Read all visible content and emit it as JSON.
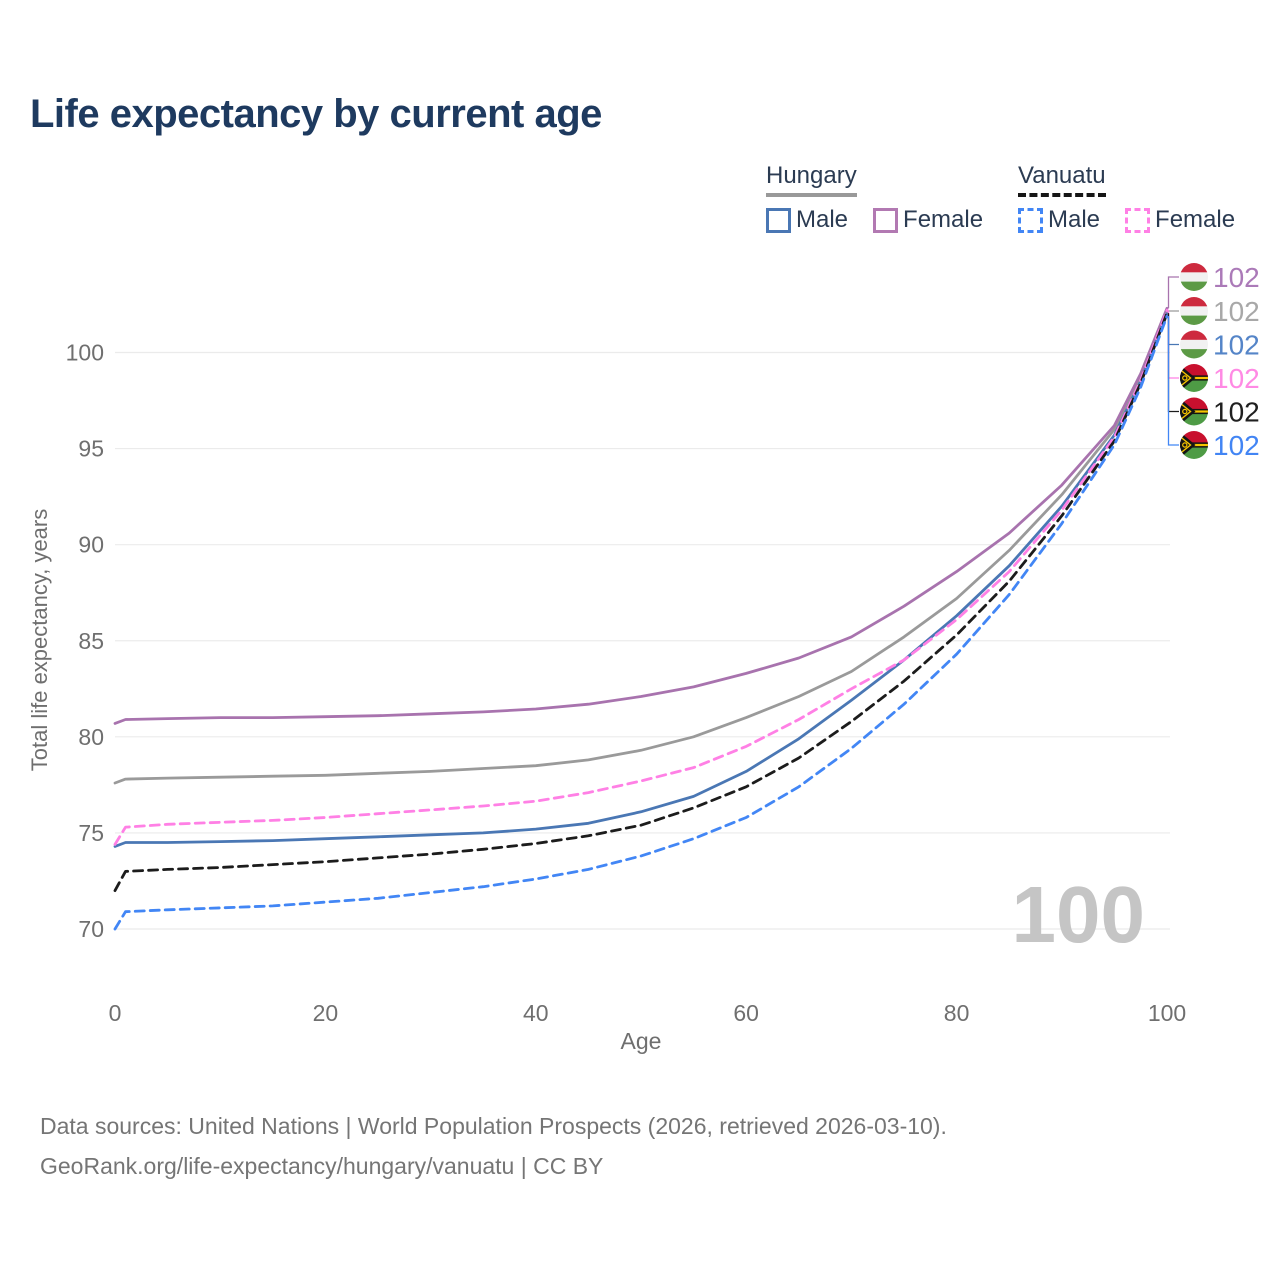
{
  "title": "Life expectancy by current age",
  "legend": {
    "groups": [
      {
        "name": "Hungary",
        "underline_style": "solid",
        "underline_color": "#999999",
        "items": [
          {
            "label": "Male",
            "color": "#4a77b4",
            "dashed": false
          },
          {
            "label": "Female",
            "color": "#b279b2",
            "dashed": false
          }
        ]
      },
      {
        "name": "Vanuatu",
        "underline_style": "dashed",
        "underline_color": "#161616",
        "items": [
          {
            "label": "Male",
            "color": "#4286f5",
            "dashed": true
          },
          {
            "label": "Female",
            "color": "#ff80e5",
            "dashed": true
          }
        ]
      }
    ]
  },
  "watermark": "100",
  "footer": {
    "line1": "Data sources: United Nations | World Population Prospects (2026, retrieved 2026-03-10).",
    "line2": "GeoRank.org/life-expectancy/hungary/vanuatu | CC BY"
  },
  "flags": {
    "hu": {
      "red": "#cd2a3e",
      "white": "#f1f1f1",
      "green": "#5c9a45"
    },
    "vu": {
      "red": "#c8102e",
      "green": "#4e9b45",
      "black": "#141414",
      "yellow": "#f5c400"
    }
  },
  "chart_data": {
    "type": "line",
    "title": "Life expectancy by current age",
    "xlabel": "Age",
    "ylabel": "Total life expectancy, years",
    "x_ticks": [
      0,
      20,
      40,
      60,
      80,
      100
    ],
    "y_ticks": [
      70,
      75,
      80,
      85,
      90,
      95,
      100
    ],
    "xlim": [
      0,
      100
    ],
    "ylim": [
      68.5,
      103
    ],
    "grid": "horizontal",
    "legend_position": "top-right",
    "x": [
      0,
      1,
      5,
      10,
      15,
      20,
      25,
      30,
      35,
      40,
      45,
      50,
      55,
      60,
      65,
      70,
      75,
      80,
      85,
      90,
      95,
      97.5,
      100
    ],
    "series": [
      {
        "id": "hungary-total",
        "name": "Hungary (both sexes)",
        "color": "#9a9a9a",
        "dashed": false,
        "flag": "hu",
        "end_label": "102",
        "end_label_color": "#a8a8a8",
        "values": [
          77.6,
          77.8,
          77.85,
          77.9,
          77.95,
          78.0,
          78.1,
          78.2,
          78.35,
          78.5,
          78.8,
          79.3,
          80.0,
          81.0,
          82.1,
          83.4,
          85.2,
          87.2,
          89.7,
          92.6,
          96.0,
          98.75,
          102.15
        ]
      },
      {
        "id": "hungary-female",
        "name": "Hungary Female",
        "color": "#a873ae",
        "dashed": false,
        "flag": "hu",
        "end_label": "102",
        "end_label_color": "#ab7ab8",
        "values": [
          80.7,
          80.9,
          80.95,
          81.0,
          81.0,
          81.05,
          81.1,
          81.2,
          81.3,
          81.45,
          81.7,
          82.1,
          82.6,
          83.3,
          84.1,
          85.2,
          86.8,
          88.6,
          90.6,
          93.1,
          96.2,
          98.9,
          102.3
        ]
      },
      {
        "id": "hungary-male",
        "name": "Hungary Male",
        "color": "#4a77b4",
        "dashed": false,
        "flag": "hu",
        "end_label": "102",
        "end_label_color": "#5585c8",
        "values": [
          74.3,
          74.5,
          74.5,
          74.55,
          74.6,
          74.7,
          74.8,
          74.9,
          75.0,
          75.2,
          75.5,
          76.1,
          76.9,
          78.2,
          79.9,
          81.9,
          84.0,
          86.3,
          88.9,
          92.0,
          95.7,
          98.5,
          102.0
        ]
      },
      {
        "id": "vanuatu-female",
        "name": "Vanuatu Female",
        "color": "#ff80e5",
        "dashed": true,
        "flag": "vu",
        "end_label": "102",
        "end_label_color": "#ff8ae4",
        "values": [
          74.4,
          75.3,
          75.45,
          75.55,
          75.65,
          75.8,
          76.0,
          76.2,
          76.4,
          76.65,
          77.1,
          77.7,
          78.4,
          79.5,
          80.9,
          82.5,
          84.0,
          86.1,
          88.6,
          91.8,
          95.6,
          98.55,
          102.2
        ]
      },
      {
        "id": "vanuatu-total",
        "name": "Vanuatu (both sexes)",
        "color": "#1c1c1c",
        "dashed": true,
        "flag": "vu",
        "end_label": "102",
        "end_label_color": "#202020",
        "values": [
          72.0,
          73.0,
          73.1,
          73.2,
          73.35,
          73.5,
          73.7,
          73.9,
          74.15,
          74.45,
          74.85,
          75.4,
          76.3,
          77.4,
          78.9,
          80.8,
          82.9,
          85.3,
          88.1,
          91.5,
          95.4,
          98.4,
          102.05
        ]
      },
      {
        "id": "vanuatu-male",
        "name": "Vanuatu Male",
        "color": "#4286f5",
        "dashed": true,
        "flag": "vu",
        "end_label": "102",
        "end_label_color": "#4285f4",
        "values": [
          70.0,
          70.9,
          71.0,
          71.1,
          71.2,
          71.4,
          71.6,
          71.9,
          72.2,
          72.6,
          73.1,
          73.8,
          74.7,
          75.8,
          77.4,
          79.4,
          81.7,
          84.3,
          87.4,
          91.1,
          95.2,
          98.2,
          101.9
        ]
      }
    ],
    "end_label_rows_order": [
      "hungary-female",
      "hungary-total",
      "hungary-male",
      "vanuatu-female",
      "vanuatu-total",
      "vanuatu-male"
    ]
  }
}
